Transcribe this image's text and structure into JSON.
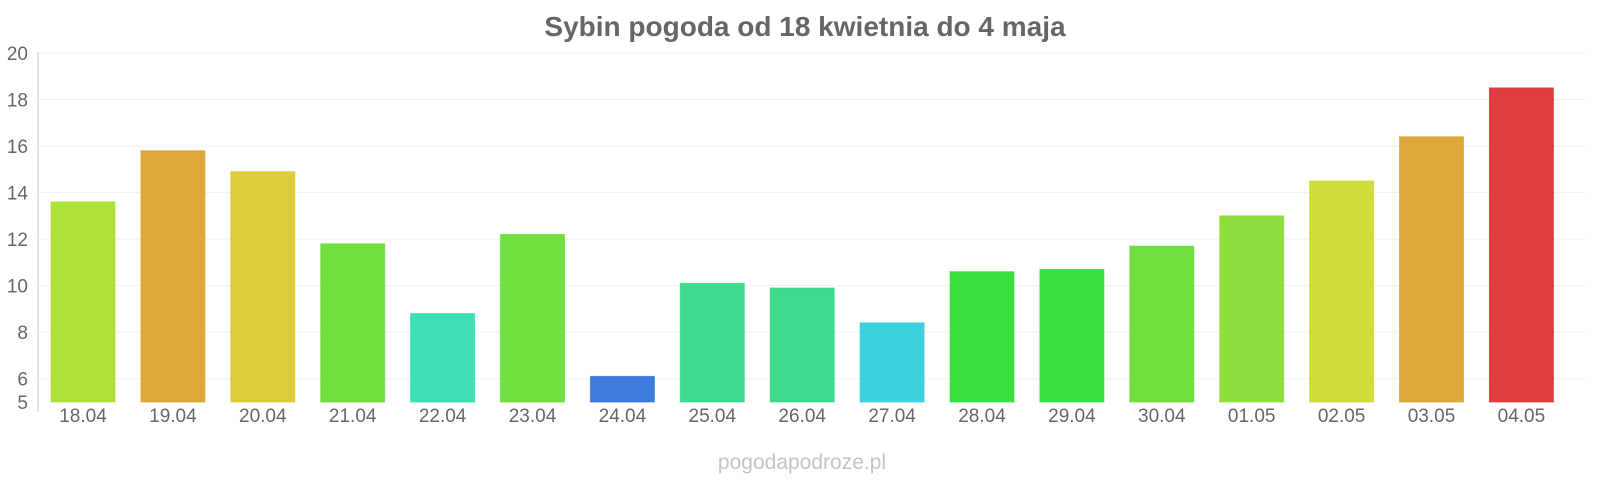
{
  "chart_data": {
    "type": "bar",
    "title": "Sybin pogoda od 18 kwietnia do 4 maja",
    "xlabel": "",
    "ylabel": "",
    "categories": [
      "18.04",
      "19.04",
      "20.04",
      "21.04",
      "22.04",
      "23.04",
      "24.04",
      "25.04",
      "26.04",
      "27.04",
      "28.04",
      "29.04",
      "30.04",
      "01.05",
      "02.05",
      "03.05",
      "04.05"
    ],
    "values": [
      13.6,
      15.8,
      14.9,
      11.8,
      8.8,
      12.2,
      6.1,
      10.1,
      9.9,
      8.4,
      10.6,
      10.7,
      11.7,
      13.0,
      14.5,
      16.4,
      18.5
    ],
    "colors": [
      "#a9de2e",
      "#dba42d",
      "#dbc92d",
      "#68dd35",
      "#33dcb4",
      "#68dd35",
      "#3374dc",
      "#33d88a",
      "#33d88a",
      "#33cfdb",
      "#32dd36",
      "#32dd36",
      "#68dd35",
      "#8adb34",
      "#cbdb31",
      "#dba42d",
      "#db3333"
    ],
    "yticks": [
      5,
      6,
      8,
      10,
      12,
      14,
      16,
      18,
      20
    ],
    "ylim": [
      5,
      20
    ],
    "grid": true,
    "legend": "none",
    "watermark": "pogodapodroze.pl"
  }
}
